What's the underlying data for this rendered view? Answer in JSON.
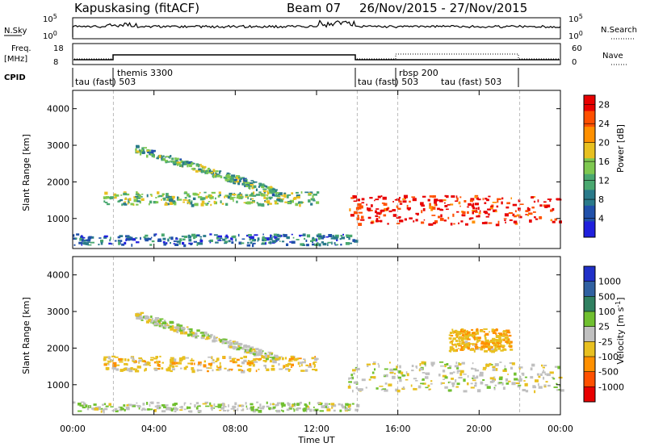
{
  "header": {
    "station": "Kapuskasing (fitACF)",
    "beam": "Beam 07",
    "dates": "26/Nov/2015 - 27/Nov/2015"
  },
  "left_labels": {
    "nsky": "N.Sky",
    "freq": "Freq.",
    "mhz": "[MHz]",
    "cpid": "CPID"
  },
  "right_labels": {
    "nsearch": "N.Search",
    "nave": "Nave"
  },
  "nsky_ticks": [
    "10^5",
    "10^0"
  ],
  "nsearch_ticks": [
    "10^5",
    "10^0"
  ],
  "freq_ticks": [
    "18",
    "8"
  ],
  "nave_ticks": [
    "60",
    "0"
  ],
  "cpid_labels": [
    "themis 3300",
    "tau (fast) 503",
    "rbsp 200",
    "tau (fast) 503",
    "tau (fast) 503"
  ],
  "colors": {
    "power_scale": [
      "#2020dd",
      "#2050aa",
      "#2a7a8a",
      "#4aa870",
      "#7ec850",
      "#e8c020",
      "#ff9000",
      "#ff5000",
      "#e80000"
    ],
    "velocity_scale": [
      "#2030c8",
      "#3060a0",
      "#308060",
      "#70c030",
      "#c0c0c0",
      "#e8c020",
      "#ff9000",
      "#ff5000",
      "#e80000"
    ]
  },
  "chart_data": [
    {
      "type": "heatmap",
      "title": "Power",
      "xlabel": "",
      "ylabel": "Slant Range [km]",
      "x_ticks": [
        "00:00",
        "04:00",
        "08:00",
        "12:00",
        "16:00",
        "20:00",
        "00:00"
      ],
      "y_ticks": [
        "1000",
        "2000",
        "3000",
        "4000"
      ],
      "ylim": [
        180,
        4500
      ],
      "colorbar": {
        "label": "Power [dB]",
        "ticks": [
          "4",
          "8",
          "12",
          "16",
          "20",
          "24",
          "28"
        ],
        "range": [
          0,
          30
        ]
      },
      "features": [
        {
          "name": "near-range echoes",
          "t_start": 0,
          "t_end": 14,
          "range_km": [
            250,
            550
          ],
          "value": 7
        },
        {
          "name": "F-region band",
          "t_start": 1.5,
          "t_end": 12,
          "range_km": [
            1350,
            1700
          ],
          "value": 14
        },
        {
          "name": "arc",
          "t_start": 3,
          "t_end": 10,
          "range_km": [
            1700,
            2900
          ],
          "value": 12
        },
        {
          "name": "evening echoes",
          "t_start": 13.5,
          "t_end": 24,
          "range_km": [
            800,
            1600
          ],
          "value": 28
        }
      ]
    },
    {
      "type": "heatmap",
      "title": "Velocity",
      "xlabel": "Time UT",
      "ylabel": "Slant Range [km]",
      "x_ticks": [
        "00:00",
        "04:00",
        "08:00",
        "12:00",
        "16:00",
        "20:00",
        "00:00"
      ],
      "y_ticks": [
        "1000",
        "2000",
        "3000",
        "4000"
      ],
      "ylim": [
        180,
        4500
      ],
      "colorbar": {
        "label": "Velocity [m s^-1]",
        "ticks": [
          "1000",
          "500",
          "100",
          "25",
          "-25",
          "-100",
          "-500",
          "-1000"
        ],
        "range": [
          -1000,
          1000
        ]
      },
      "features": [
        {
          "name": "ground scatter near range",
          "t_start": 0,
          "t_end": 14,
          "range_km": [
            250,
            500
          ],
          "value": 50
        },
        {
          "name": "F-region band",
          "t_start": 1.5,
          "t_end": 12,
          "range_km": [
            1350,
            1750
          ],
          "value": -200
        },
        {
          "name": "arc",
          "t_start": 3,
          "t_end": 10,
          "range_km": [
            1700,
            2900
          ],
          "value": 0
        },
        {
          "name": "evening echoes",
          "t_start": 13.5,
          "t_end": 24,
          "range_km": [
            800,
            1600
          ],
          "value": 0
        },
        {
          "name": "late patch",
          "t_start": 18.5,
          "t_end": 21.5,
          "range_km": [
            1900,
            2500
          ],
          "value": -300
        }
      ]
    }
  ]
}
